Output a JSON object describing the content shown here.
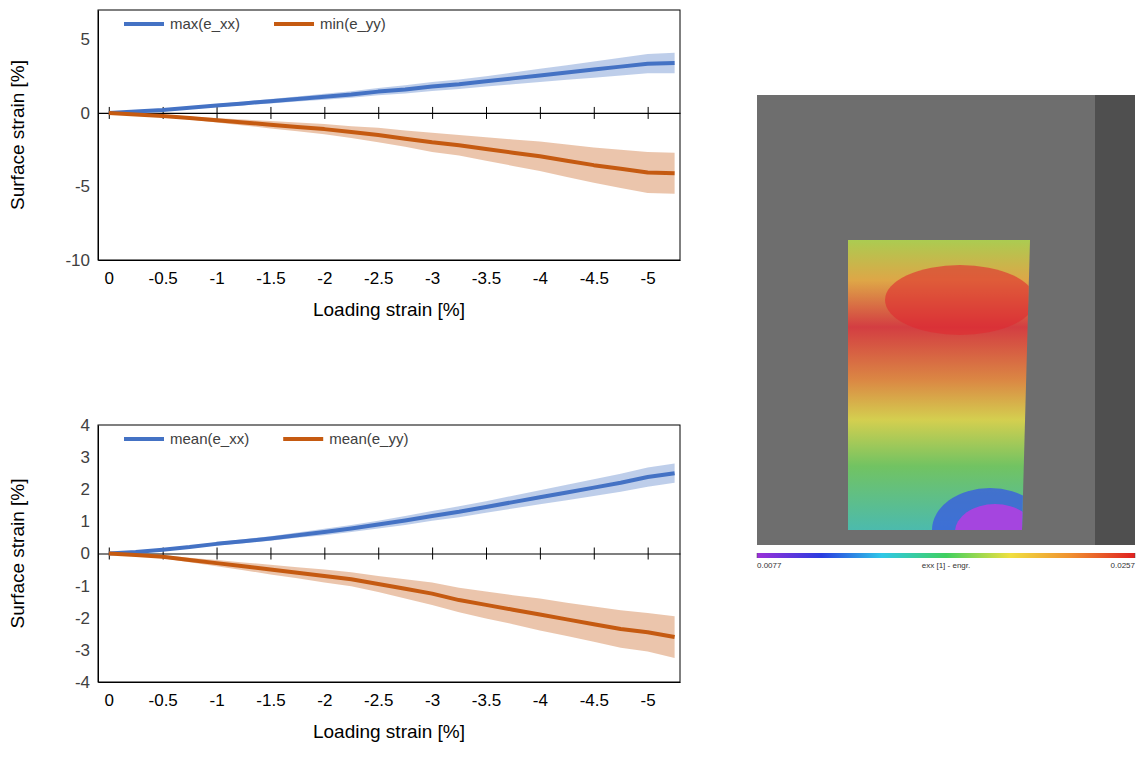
{
  "chart_data": [
    {
      "type": "line",
      "x_label": "Loading strain [%]",
      "y_label": "Surface strain [%]",
      "x": [
        0,
        -0.25,
        -0.5,
        -0.75,
        -1,
        -1.25,
        -1.5,
        -1.75,
        -2,
        -2.25,
        -2.5,
        -2.75,
        -3,
        -3.25,
        -3.5,
        -3.75,
        -4,
        -4.25,
        -4.5,
        -4.75,
        -5,
        -5.25
      ],
      "xlim": [
        0.1,
        -5.3
      ],
      "xticks": [
        0,
        -0.5,
        -1,
        -1.5,
        -2,
        -2.5,
        -3,
        -3.5,
        -4,
        -4.5,
        -5
      ],
      "ylim": [
        -10,
        7
      ],
      "yticks": [
        -10,
        -5,
        0,
        5
      ],
      "grid": false,
      "legend": "top-left",
      "series": [
        {
          "name": "max(e_xx)",
          "color": "#4472c4",
          "values": [
            0,
            0.1,
            0.2,
            0.35,
            0.5,
            0.65,
            0.8,
            0.95,
            1.1,
            1.25,
            1.45,
            1.6,
            1.8,
            1.95,
            2.15,
            2.35,
            2.55,
            2.75,
            2.95,
            3.15,
            3.35,
            3.4
          ],
          "error": [
            0,
            0.02,
            0.05,
            0.07,
            0.1,
            0.12,
            0.15,
            0.17,
            0.2,
            0.22,
            0.25,
            0.28,
            0.3,
            0.33,
            0.35,
            0.4,
            0.45,
            0.5,
            0.55,
            0.6,
            0.65,
            0.7
          ]
        },
        {
          "name": "min(e_yy)",
          "color": "#c55a11",
          "values": [
            0,
            -0.1,
            -0.2,
            -0.35,
            -0.5,
            -0.65,
            -0.8,
            -0.95,
            -1.1,
            -1.3,
            -1.5,
            -1.75,
            -2.0,
            -2.2,
            -2.45,
            -2.7,
            -2.95,
            -3.25,
            -3.55,
            -3.8,
            -4.05,
            -4.1
          ],
          "error": [
            0,
            0.03,
            0.06,
            0.1,
            0.15,
            0.2,
            0.25,
            0.3,
            0.35,
            0.4,
            0.5,
            0.55,
            0.65,
            0.7,
            0.8,
            0.9,
            1.0,
            1.1,
            1.2,
            1.3,
            1.4,
            1.4
          ]
        }
      ]
    },
    {
      "type": "line",
      "x_label": "Loading strain [%]",
      "y_label": "Surface strain [%]",
      "x": [
        0,
        -0.25,
        -0.5,
        -0.75,
        -1,
        -1.25,
        -1.5,
        -1.75,
        -2,
        -2.25,
        -2.5,
        -2.75,
        -3,
        -3.25,
        -3.5,
        -3.75,
        -4,
        -4.25,
        -4.5,
        -4.75,
        -5,
        -5.25
      ],
      "xlim": [
        0.1,
        -5.3
      ],
      "xticks": [
        0,
        -0.5,
        -1,
        -1.5,
        -2,
        -2.5,
        -3,
        -3.5,
        -4,
        -4.5,
        -5
      ],
      "ylim": [
        -4,
        4
      ],
      "yticks": [
        -4,
        -3,
        -2,
        -1,
        0,
        1,
        2,
        3,
        4
      ],
      "grid": false,
      "legend": "top-left",
      "series": [
        {
          "name": "mean(e_xx)",
          "color": "#4472c4",
          "values": [
            0,
            0.05,
            0.12,
            0.2,
            0.3,
            0.38,
            0.47,
            0.57,
            0.67,
            0.78,
            0.9,
            1.03,
            1.17,
            1.3,
            1.45,
            1.6,
            1.75,
            1.9,
            2.05,
            2.2,
            2.38,
            2.5
          ],
          "error": [
            0,
            0.01,
            0.02,
            0.03,
            0.05,
            0.06,
            0.07,
            0.08,
            0.1,
            0.11,
            0.12,
            0.14,
            0.15,
            0.17,
            0.18,
            0.2,
            0.22,
            0.24,
            0.26,
            0.28,
            0.3,
            0.3
          ]
        },
        {
          "name": "mean(e_yy)",
          "color": "#c55a11",
          "values": [
            0,
            -0.05,
            -0.1,
            -0.2,
            -0.3,
            -0.4,
            -0.5,
            -0.6,
            -0.7,
            -0.8,
            -0.95,
            -1.1,
            -1.25,
            -1.45,
            -1.6,
            -1.75,
            -1.9,
            -2.05,
            -2.2,
            -2.35,
            -2.45,
            -2.6
          ],
          "error": [
            0,
            0.02,
            0.05,
            0.07,
            0.1,
            0.12,
            0.15,
            0.17,
            0.2,
            0.22,
            0.25,
            0.3,
            0.35,
            0.38,
            0.42,
            0.45,
            0.5,
            0.52,
            0.55,
            0.58,
            0.6,
            0.65
          ]
        }
      ]
    },
    {
      "type": "image",
      "colorbar": {
        "range": [
          0.0077,
          0.0257
        ],
        "ticks": [
          0.0077,
          0.0257
        ],
        "label": "exx [1] - engr."
      }
    }
  ]
}
